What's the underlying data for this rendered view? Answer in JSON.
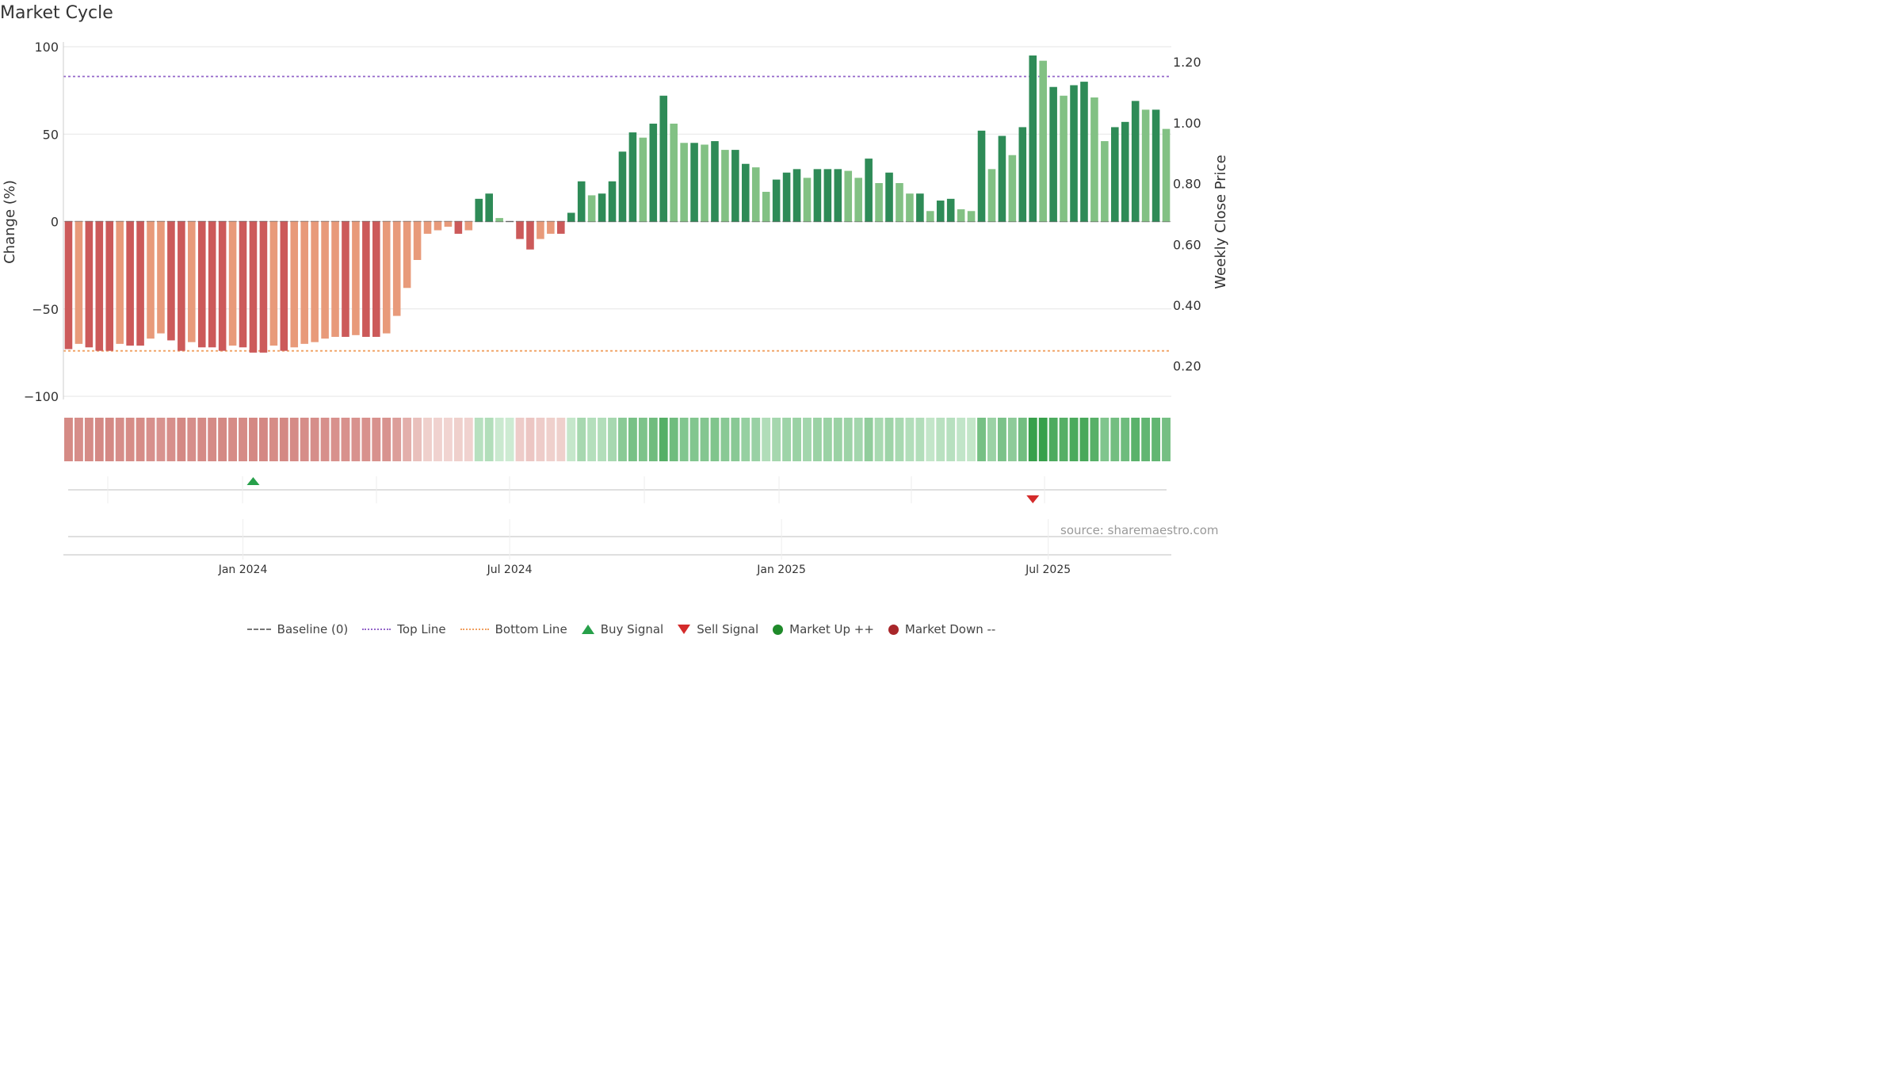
{
  "title": "Market Cycle",
  "source": "source: sharemaestro.com",
  "legend": [
    {
      "key": "baseline",
      "label": "Baseline (0)"
    },
    {
      "key": "top",
      "label": "Top Line"
    },
    {
      "key": "bottom",
      "label": "Bottom Line"
    },
    {
      "key": "buy",
      "label": "Buy Signal"
    },
    {
      "key": "sell",
      "label": "Sell Signal"
    },
    {
      "key": "up",
      "label": "Market Up ++"
    },
    {
      "key": "down",
      "label": "Market Down --"
    }
  ],
  "colors": {
    "bar_strong_neg": "#cc5a5a",
    "bar_neg": "#e89a7a",
    "bar_strong_pos": "#2e8b57",
    "bar_pos": "#82c184",
    "top_line": "#9466c9",
    "bottom_line": "#f0a060",
    "buy": "#27a04a",
    "sell": "#d42b2b"
  },
  "chart_data": {
    "type": "bar",
    "ylabel": "Change (%)",
    "y2label": "Weekly Close Price",
    "ylim": [
      -100,
      100
    ],
    "yticks": [
      "100",
      "50",
      "0",
      "−50",
      "−100"
    ],
    "y2lim": [
      0.1,
      1.25
    ],
    "y2ticks": [
      "1.20",
      "1.00",
      "0.80",
      "0.60",
      "0.40",
      "0.20"
    ],
    "top_line": 83,
    "bottom_line": -74,
    "x_ticks": [
      {
        "label": "Jan 2024",
        "index": 17
      },
      {
        "label": "Jul 2024",
        "index": 43
      },
      {
        "label": "Jan 2025",
        "index": 69.5
      },
      {
        "label": "Jul 2025",
        "index": 95.5
      }
    ],
    "values": [
      -73,
      -70,
      -72,
      -74,
      -74,
      -70,
      -71,
      -71,
      -67,
      -64,
      -68,
      -74,
      -69,
      -72,
      -72,
      -74,
      -71,
      -72,
      -75,
      -75,
      -71,
      -74,
      -72,
      -70,
      -69,
      -67,
      -66,
      -66,
      -65,
      -66,
      -66,
      -64,
      -54,
      -38,
      -22,
      -7,
      -5,
      -3,
      -7,
      -5,
      13,
      16,
      2,
      0,
      -10,
      -16,
      -10,
      -7,
      -7,
      5,
      23,
      15,
      16,
      23,
      40,
      51,
      48,
      56,
      72,
      56,
      45,
      45,
      44,
      46,
      41,
      41,
      33,
      31,
      17,
      24,
      28,
      30,
      25,
      30,
      30,
      30,
      29,
      25,
      36,
      22,
      28,
      22,
      16,
      16,
      6,
      12,
      13,
      7,
      6,
      52,
      30,
      49,
      38,
      54,
      95,
      92,
      77,
      72,
      78,
      80,
      71,
      46,
      54,
      57,
      69,
      64,
      64,
      53
    ],
    "strength": [
      1,
      0,
      1,
      1,
      1,
      0,
      1,
      1,
      0,
      0,
      1,
      1,
      0,
      1,
      1,
      1,
      0,
      1,
      1,
      1,
      0,
      1,
      0,
      0,
      0,
      0,
      0,
      1,
      0,
      1,
      1,
      0,
      0,
      0,
      0,
      0,
      0,
      0,
      1,
      0,
      1,
      1,
      0,
      0,
      1,
      1,
      0,
      0,
      1,
      1,
      1,
      0,
      1,
      1,
      1,
      1,
      0,
      1,
      1,
      0,
      0,
      1,
      0,
      1,
      0,
      1,
      1,
      0,
      0,
      1,
      1,
      1,
      0,
      1,
      1,
      1,
      0,
      0,
      1,
      0,
      1,
      0,
      0,
      1,
      0,
      1,
      1,
      0,
      0,
      1,
      0,
      1,
      0,
      1,
      1,
      0,
      1,
      0,
      1,
      1,
      0,
      0,
      1,
      1,
      1,
      0,
      1,
      0
    ],
    "signals": [
      {
        "type": "buy",
        "index": 18
      },
      {
        "type": "sell",
        "index": 94
      }
    ]
  }
}
